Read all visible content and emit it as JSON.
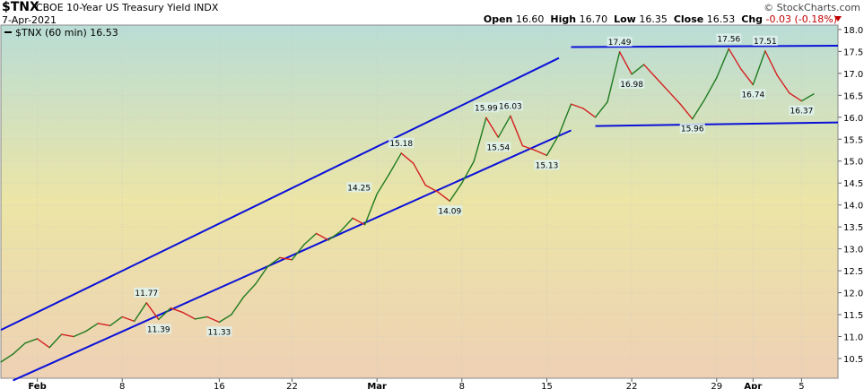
{
  "header": {
    "symbol": "$TNX",
    "name": "CBOE 10-Year US Treasury Yield INDX",
    "date": "7-Apr-2021",
    "brand": "© StockCharts.com",
    "open_label": "Open",
    "open": "16.60",
    "high_label": "High",
    "high": "16.70",
    "low_label": "Low",
    "low": "16.35",
    "close_label": "Close",
    "close": "16.53",
    "chg_label": "Chg",
    "chg": "-0.03 (-0.18%)"
  },
  "colors": {
    "bg_top": "#b9ddd6",
    "bg_mid": "#ece5a6",
    "bg_bottom": "#eed1b4",
    "up": "#1f7a1f",
    "down": "#d42020",
    "trend": "#0a10d8"
  },
  "chart_data": {
    "type": "line",
    "legend": "$TNX (60 min) 16.53",
    "legend_position": "top-left",
    "grid": true,
    "ylim": [
      10.0,
      18.0
    ],
    "y_ticks": [
      "10.5",
      "11.0",
      "11.5",
      "12.0",
      "12.5",
      "13.0",
      "13.5",
      "14.0",
      "14.5",
      "15.0",
      "15.5",
      "16.0",
      "16.5",
      "17.0",
      "17.5",
      "18.0"
    ],
    "x_ticks": [
      {
        "label": "Feb",
        "x": "2021-02-01"
      },
      {
        "label": "8",
        "x": "2021-02-08"
      },
      {
        "label": "16",
        "x": "2021-02-16"
      },
      {
        "label": "22",
        "x": "2021-02-22"
      },
      {
        "label": "Mar",
        "x": "2021-03-01"
      },
      {
        "label": "8",
        "x": "2021-03-08"
      },
      {
        "label": "15",
        "x": "2021-03-15"
      },
      {
        "label": "22",
        "x": "2021-03-22"
      },
      {
        "label": "29",
        "x": "2021-03-29"
      },
      {
        "label": "Apr",
        "x": "2021-04-01"
      },
      {
        "label": "5",
        "x": "2021-04-05"
      }
    ],
    "series": [
      {
        "name": "$TNX",
        "points": [
          [
            "2021-01-29",
            10.42
          ],
          [
            "2021-01-30",
            10.6
          ],
          [
            "2021-01-31",
            10.85
          ],
          [
            "2021-02-01",
            10.95
          ],
          [
            "2021-02-02",
            10.75
          ],
          [
            "2021-02-03",
            11.05
          ],
          [
            "2021-02-04",
            11.0
          ],
          [
            "2021-02-05",
            11.12
          ],
          [
            "2021-02-06",
            11.3
          ],
          [
            "2021-02-07",
            11.25
          ],
          [
            "2021-02-08",
            11.45
          ],
          [
            "2021-02-09",
            11.35
          ],
          [
            "2021-02-10",
            11.77
          ],
          [
            "2021-02-11",
            11.39
          ],
          [
            "2021-02-12",
            11.65
          ],
          [
            "2021-02-13",
            11.55
          ],
          [
            "2021-02-14",
            11.4
          ],
          [
            "2021-02-15",
            11.45
          ],
          [
            "2021-02-16",
            11.33
          ],
          [
            "2021-02-17",
            11.5
          ],
          [
            "2021-02-18",
            11.9
          ],
          [
            "2021-02-19",
            12.2
          ],
          [
            "2021-02-20",
            12.6
          ],
          [
            "2021-02-21",
            12.8
          ],
          [
            "2021-02-22",
            12.75
          ],
          [
            "2021-02-23",
            13.1
          ],
          [
            "2021-02-24",
            13.35
          ],
          [
            "2021-02-25",
            13.2
          ],
          [
            "2021-02-26",
            13.4
          ],
          [
            "2021-02-27",
            13.7
          ],
          [
            "2021-02-28",
            13.55
          ],
          [
            "2021-03-01",
            14.25
          ],
          [
            "2021-03-02",
            14.7
          ],
          [
            "2021-03-03",
            15.18
          ],
          [
            "2021-03-04",
            14.95
          ],
          [
            "2021-03-05",
            14.45
          ],
          [
            "2021-03-06",
            14.3
          ],
          [
            "2021-03-07",
            14.09
          ],
          [
            "2021-03-08",
            14.5
          ],
          [
            "2021-03-09",
            15.0
          ],
          [
            "2021-03-10",
            15.99
          ],
          [
            "2021-03-11",
            15.54
          ],
          [
            "2021-03-12",
            16.03
          ],
          [
            "2021-03-13",
            15.35
          ],
          [
            "2021-03-14",
            15.25
          ],
          [
            "2021-03-15",
            15.13
          ],
          [
            "2021-03-16",
            15.6
          ],
          [
            "2021-03-17",
            16.3
          ],
          [
            "2021-03-18",
            16.2
          ],
          [
            "2021-03-19",
            16.0
          ],
          [
            "2021-03-20",
            16.35
          ],
          [
            "2021-03-21",
            17.49
          ],
          [
            "2021-03-22",
            16.98
          ],
          [
            "2021-03-23",
            17.2
          ],
          [
            "2021-03-24",
            16.9
          ],
          [
            "2021-03-25",
            16.6
          ],
          [
            "2021-03-26",
            16.3
          ],
          [
            "2021-03-27",
            15.96
          ],
          [
            "2021-03-28",
            16.4
          ],
          [
            "2021-03-29",
            16.9
          ],
          [
            "2021-03-30",
            17.56
          ],
          [
            "2021-03-31",
            17.1
          ],
          [
            "2021-04-01",
            16.74
          ],
          [
            "2021-04-02",
            17.51
          ],
          [
            "2021-04-03",
            16.95
          ],
          [
            "2021-04-04",
            16.55
          ],
          [
            "2021-04-05",
            16.37
          ],
          [
            "2021-04-06",
            16.53
          ]
        ]
      }
    ],
    "annotations": [
      {
        "text": "11.77",
        "x": "2021-02-10",
        "y": 11.77,
        "pos": "above"
      },
      {
        "text": "11.39",
        "x": "2021-02-11",
        "y": 11.39,
        "pos": "below"
      },
      {
        "text": "11.33",
        "x": "2021-02-16",
        "y": 11.33,
        "pos": "below"
      },
      {
        "text": "15.18",
        "x": "2021-03-03",
        "y": 15.18,
        "pos": "above"
      },
      {
        "text": "14.25",
        "x": "2021-03-01",
        "y": 14.25,
        "pos": "left"
      },
      {
        "text": "14.09",
        "x": "2021-03-07",
        "y": 14.09,
        "pos": "below"
      },
      {
        "text": "15.99",
        "x": "2021-03-10",
        "y": 15.99,
        "pos": "above"
      },
      {
        "text": "16.03",
        "x": "2021-03-12",
        "y": 16.03,
        "pos": "above"
      },
      {
        "text": "15.54",
        "x": "2021-03-11",
        "y": 15.54,
        "pos": "below"
      },
      {
        "text": "15.13",
        "x": "2021-03-15",
        "y": 15.13,
        "pos": "below"
      },
      {
        "text": "17.49",
        "x": "2021-03-21",
        "y": 17.49,
        "pos": "above"
      },
      {
        "text": "16.98",
        "x": "2021-03-22",
        "y": 16.98,
        "pos": "below"
      },
      {
        "text": "15.96",
        "x": "2021-03-27",
        "y": 15.96,
        "pos": "below"
      },
      {
        "text": "17.56",
        "x": "2021-03-30",
        "y": 17.56,
        "pos": "above"
      },
      {
        "text": "17.51",
        "x": "2021-04-02",
        "y": 17.51,
        "pos": "above"
      },
      {
        "text": "16.74",
        "x": "2021-04-01",
        "y": 16.74,
        "pos": "below"
      },
      {
        "text": "16.37",
        "x": "2021-04-05",
        "y": 16.37,
        "pos": "below"
      }
    ],
    "trendlines": [
      {
        "x1": "2021-01-29",
        "y1": 11.15,
        "x2": "2021-03-16",
        "y2": 17.35
      },
      {
        "x1": "2021-01-30",
        "y1": 10.0,
        "x2": "2021-03-17",
        "y2": 15.7
      },
      {
        "x1": "2021-03-17",
        "y1": 17.6,
        "x2": "2021-04-08",
        "y2": 17.63
      },
      {
        "x1": "2021-03-19",
        "y1": 15.8,
        "x2": "2021-04-08",
        "y2": 15.88
      }
    ]
  }
}
